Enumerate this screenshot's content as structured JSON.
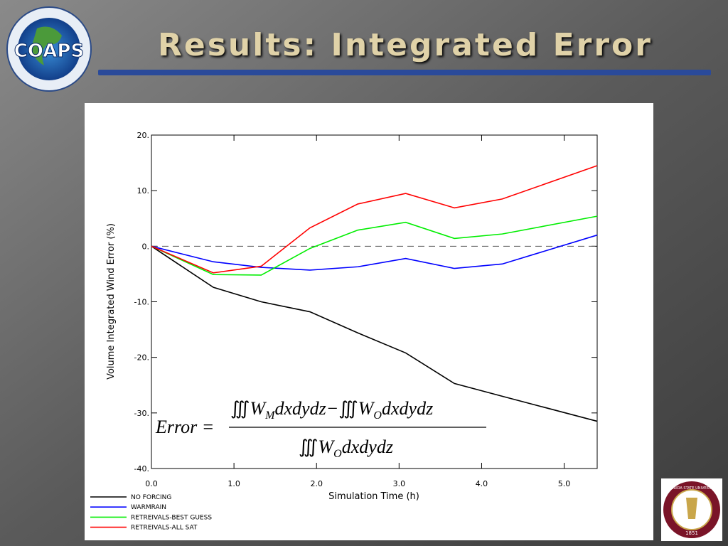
{
  "slide": {
    "title": "Results:  Integrated Error",
    "logo_text": "COAPS",
    "seal_text": "FLORIDA STATE UNIVERSITY",
    "seal_year": "1851"
  },
  "chart_data": {
    "type": "line",
    "x_label": "Simulation Time (h)",
    "y_label": "Volume Integrated Wind Error (%)",
    "x": [
      0,
      0.75,
      1.33,
      1.92,
      2.5,
      3.08,
      3.67,
      4.25,
      5.4
    ],
    "series": [
      {
        "name": "NO FORCING",
        "color": "#000000",
        "values": [
          0,
          -7.4,
          -10,
          -11.8,
          -15.6,
          -19.2,
          -24.7,
          -27,
          -31.5
        ]
      },
      {
        "name": "WARMRAIN",
        "color": "#0000ff",
        "values": [
          0,
          -2.8,
          -3.8,
          -4.3,
          -3.7,
          -2.2,
          -4,
          -3.2,
          2
        ]
      },
      {
        "name": "RETREIVALS-BEST GUESS",
        "color": "#00ee00",
        "values": [
          0,
          -5.1,
          -5.2,
          -0.4,
          2.9,
          4.3,
          1.4,
          2.2,
          5.4
        ]
      },
      {
        "name": "RETREIVALS-ALL SAT",
        "color": "#ff0000",
        "values": [
          0,
          -4.8,
          -3.6,
          3.3,
          7.6,
          9.5,
          6.9,
          8.5,
          14.5
        ]
      }
    ],
    "reference_line": 0,
    "xlim": [
      0,
      5.4
    ],
    "ylim": [
      -40,
      20
    ],
    "xticks": [
      {
        "value": 0,
        "label": "0.0"
      },
      {
        "value": 1,
        "label": "1.0"
      },
      {
        "value": 2,
        "label": "2.0"
      },
      {
        "value": 3,
        "label": "3.0"
      },
      {
        "value": 4,
        "label": "4.0"
      },
      {
        "value": 5,
        "label": "5.0"
      }
    ],
    "yticks": [
      {
        "value": -40,
        "label": "-40."
      },
      {
        "value": -30,
        "label": "-30."
      },
      {
        "value": -20,
        "label": "-20."
      },
      {
        "value": -10,
        "label": "-10."
      },
      {
        "value": 0,
        "label": "0."
      },
      {
        "value": 10,
        "label": "10."
      },
      {
        "value": 20,
        "label": "20."
      }
    ]
  },
  "formula": {
    "lhs": "Error =",
    "numerator": [
      {
        "integral": "∭",
        "var": "W",
        "sub": "M",
        "diff": "dxdydz"
      },
      {
        "op": "−"
      },
      {
        "integral": "∭",
        "var": "W",
        "sub": "O",
        "diff": "dxdydz"
      }
    ],
    "denominator": [
      {
        "integral": "∭",
        "var": "W",
        "sub": "O",
        "diff": "dxdydz"
      }
    ]
  }
}
